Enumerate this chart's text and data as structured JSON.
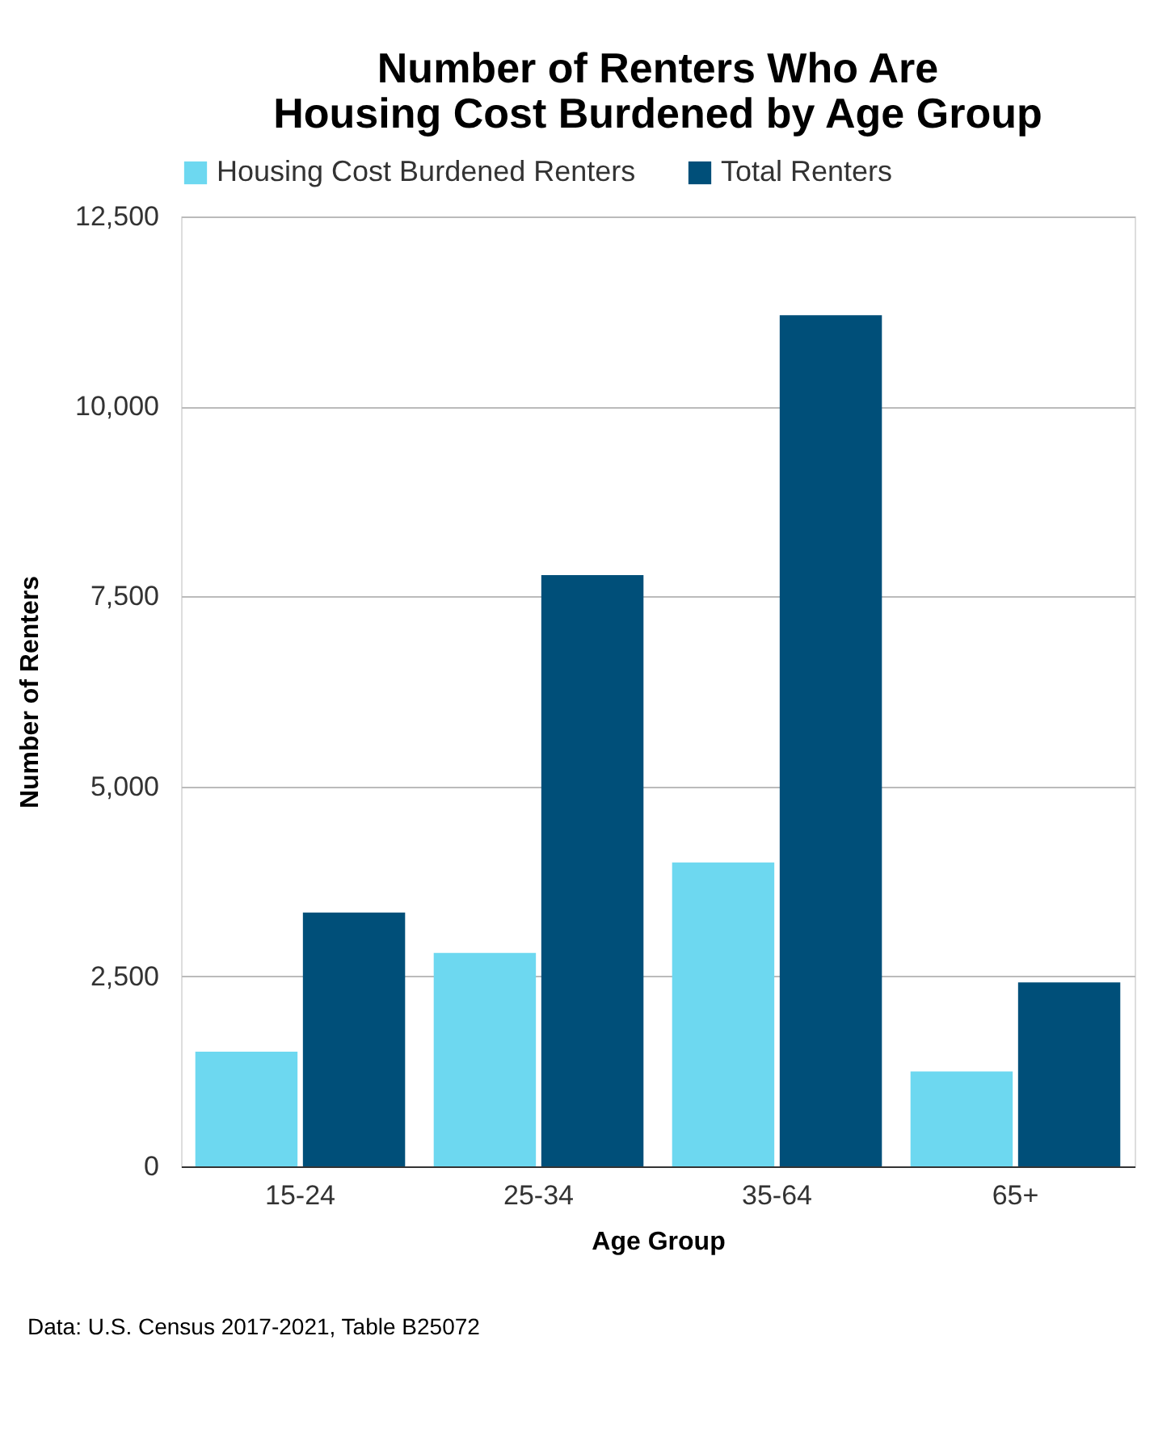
{
  "chart_data": {
    "type": "bar",
    "title": [
      "Number of Renters Who Are",
      "Housing Cost Burdened by Age Group"
    ],
    "xlabel": "Age Group",
    "ylabel": "Number of Renters",
    "categories": [
      "15-24",
      "25-34",
      "35-64",
      "65+"
    ],
    "series": [
      {
        "name": "Housing Cost Burdened Renters",
        "color": "#6dd8f0",
        "values": [
          1510,
          2810,
          4000,
          1250
        ]
      },
      {
        "name": "Total Renters",
        "color": "#004f79",
        "values": [
          3340,
          7780,
          11200,
          2420
        ]
      }
    ],
    "ylim": [
      0,
      12500
    ],
    "yticks": [
      0,
      {
        "value": 2500,
        "label": "2,500"
      },
      {
        "value": 5000,
        "label": "5,000"
      },
      {
        "value": 7500,
        "label": "7,500"
      },
      {
        "value": 10000,
        "label": "10,000"
      },
      {
        "value": 12500,
        "label": "12,500"
      }
    ],
    "grid": "y",
    "legend": "top",
    "annotations": [
      "Data: U.S. Census 2017-2021, Table B25072"
    ]
  }
}
